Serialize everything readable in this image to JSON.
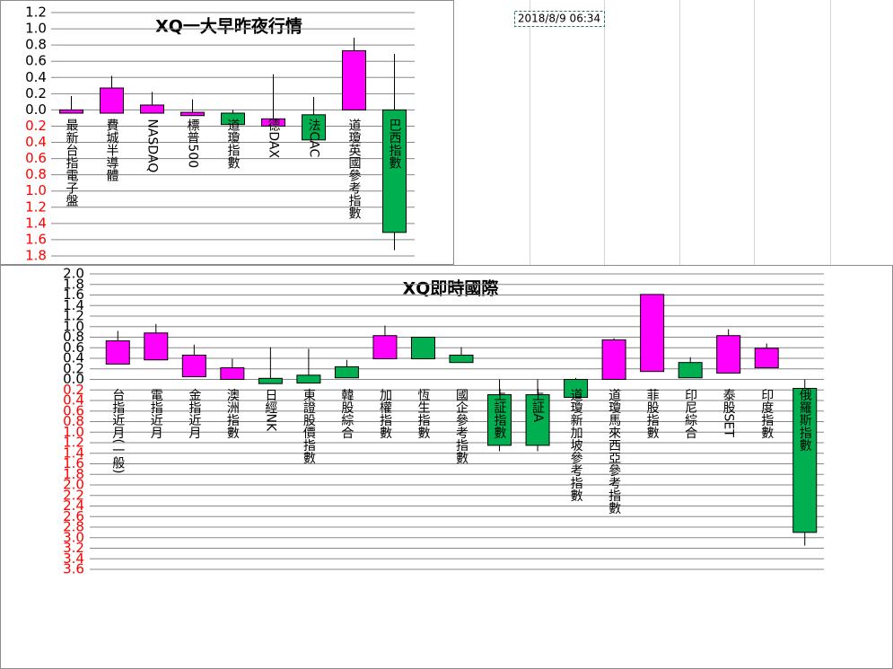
{
  "cell": {
    "text": "2018/8/9 06:34"
  },
  "chart_data": [
    {
      "type": "candlestick",
      "title": "XQ一大早昨夜行情",
      "up_color": "#ff00ff",
      "down_color": "#00b050",
      "grid": true,
      "categories": [
        "最新台指電子盤",
        "費城半導體",
        "NASDAQ",
        "標普500",
        "道瓊指數",
        "德DAX",
        "法CAC",
        "道瓊英國參考指數",
        "巴西指數"
      ],
      "open": [
        -0.04,
        -0.04,
        -0.04,
        -0.07,
        -0.04,
        -0.2,
        -0.06,
        0,
        0
      ],
      "close": [
        0,
        0.27,
        0.06,
        -0.03,
        -0.18,
        -0.11,
        -0.37,
        0.73,
        -1.51
      ],
      "high": [
        0.17,
        0.42,
        0.22,
        0.13,
        0,
        0.44,
        0.16,
        0.89,
        0.69
      ],
      "low": [
        -0.04,
        -0.04,
        -0.04,
        -0.07,
        -0.18,
        -0.2,
        -0.37,
        0,
        -1.73
      ],
      "ylim": [
        -1.8,
        1.2
      ],
      "yticks": [
        1.2,
        {
          "value": 1,
          "label": "1.0"
        },
        0.8,
        0.6,
        0.4,
        0.2,
        {
          "value": 0,
          "label": "0.0"
        },
        {
          "value": -0.2,
          "label": "0.2"
        },
        {
          "value": -0.4,
          "label": "0.4"
        },
        {
          "value": -0.6,
          "label": "0.6"
        },
        {
          "value": -0.8,
          "label": "0.8"
        },
        {
          "value": -1,
          "label": "1.0"
        },
        {
          "value": -1.2,
          "label": "1.2"
        },
        {
          "value": -1.4,
          "label": "1.4"
        },
        {
          "value": -1.6,
          "label": "1.6"
        },
        {
          "value": -1.8,
          "label": "1.8"
        }
      ]
    },
    {
      "type": "candlestick",
      "title": "XQ即時國際",
      "up_color": "#ff00ff",
      "down_color": "#00b050",
      "grid": true,
      "categories": [
        "台指近月(一般)",
        "電指近月",
        "金指近月",
        "澳洲指數",
        "日經NK",
        "東證股價指數",
        "韓股綜合",
        "加權指數",
        "恆生指數",
        "國企參考指數",
        "上証指數",
        "上証A",
        "道瓊新加坡參考指數",
        "道瓊馬來西亞參考指數",
        "菲股指數",
        "印尼綜合",
        "泰股SET",
        "印度指數",
        "俄羅斯指數"
      ],
      "open": [
        0.29,
        0.37,
        0.05,
        0,
        0.02,
        0.08,
        0.24,
        0.39,
        0.8,
        0.46,
        -0.29,
        -0.29,
        0,
        0,
        0.15,
        0.32,
        0.12,
        0.22,
        -0.17
      ],
      "close": [
        0.73,
        0.88,
        0.46,
        0.22,
        -0.08,
        -0.07,
        0.03,
        0.83,
        0.39,
        0.32,
        -1.25,
        -1.25,
        -0.34,
        0.75,
        1.61,
        0.03,
        0.83,
        0.59,
        -2.9
      ],
      "high": [
        0.92,
        1.05,
        0.66,
        0.39,
        0.61,
        0.58,
        0.37,
        1.02,
        0.8,
        0.61,
        0,
        0,
        0.03,
        0.78,
        1.61,
        0.42,
        0.95,
        0.68,
        0
      ],
      "low": [
        0.29,
        0.37,
        0.05,
        0,
        -0.08,
        -0.07,
        0.03,
        0.39,
        0.39,
        0.32,
        -1.36,
        -1.36,
        -0.34,
        0,
        0.15,
        0.03,
        0.12,
        0.22,
        -3.15
      ],
      "ylim": [
        -3.6,
        2
      ],
      "yticks": [
        {
          "value": 2,
          "label": "2.0"
        },
        1.8,
        1.6,
        1.4,
        1.2,
        {
          "value": 1,
          "label": "1.0"
        },
        0.8,
        0.6,
        0.4,
        0.2,
        {
          "value": 0,
          "label": "0.0"
        },
        {
          "value": -0.2,
          "label": "0.2"
        },
        {
          "value": -0.4,
          "label": "0.4"
        },
        {
          "value": -0.6,
          "label": "0.6"
        },
        {
          "value": -0.8,
          "label": "0.8"
        },
        {
          "value": -1,
          "label": "1.0"
        },
        {
          "value": -1.2,
          "label": "1.2"
        },
        {
          "value": -1.4,
          "label": "1.4"
        },
        {
          "value": -1.6,
          "label": "1.6"
        },
        {
          "value": -1.8,
          "label": "1.8"
        },
        {
          "value": -2,
          "label": "2.0"
        },
        {
          "value": -2.2,
          "label": "2.2"
        },
        {
          "value": -2.4,
          "label": "2.4"
        },
        {
          "value": -2.6,
          "label": "2.6"
        },
        {
          "value": -2.8,
          "label": "2.8"
        },
        {
          "value": -3,
          "label": "3.0"
        },
        {
          "value": -3.2,
          "label": "3.2"
        },
        {
          "value": -3.4,
          "label": "3.4"
        },
        {
          "value": -3.6,
          "label": "3.6"
        }
      ]
    }
  ]
}
